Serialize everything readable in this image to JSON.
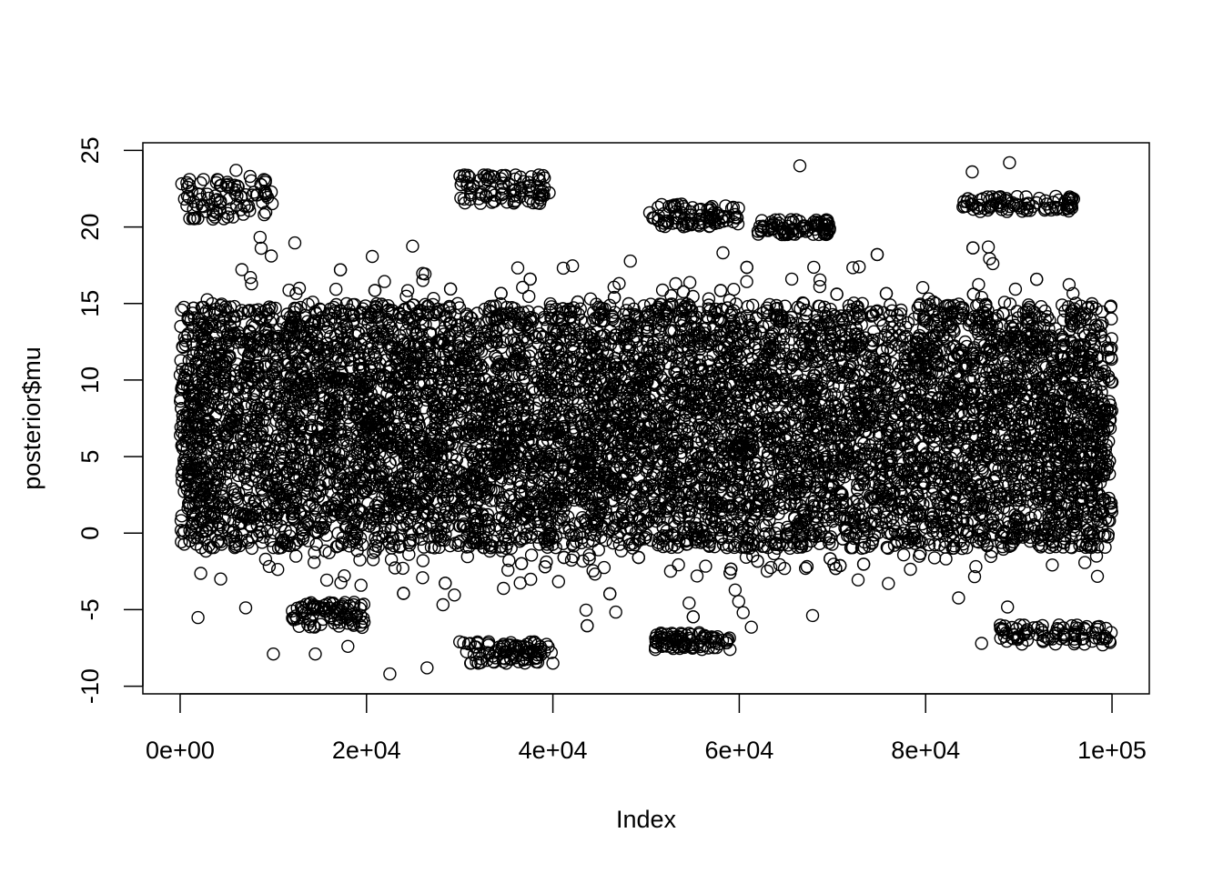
{
  "chart_data": {
    "type": "scatter",
    "title": "",
    "xlabel": "Index",
    "ylabel": "posterior$mu",
    "xlim": [
      -4000,
      104000
    ],
    "ylim": [
      -10.5,
      25.5
    ],
    "x_ticks": [
      {
        "value": 0,
        "label": "0e+00"
      },
      {
        "value": 20000,
        "label": "2e+04"
      },
      {
        "value": 40000,
        "label": "4e+04"
      },
      {
        "value": 60000,
        "label": "6e+04"
      },
      {
        "value": 80000,
        "label": "8e+04"
      },
      {
        "value": 100000,
        "label": "1e+05"
      }
    ],
    "y_ticks": [
      {
        "value": -10,
        "label": "-10"
      },
      {
        "value": -5,
        "label": "-5"
      },
      {
        "value": 0,
        "label": "0"
      },
      {
        "value": 5,
        "label": "5"
      },
      {
        "value": 10,
        "label": "10"
      },
      {
        "value": 15,
        "label": "15"
      },
      {
        "value": 20,
        "label": "20"
      },
      {
        "value": 25,
        "label": "25"
      }
    ],
    "marker": "open-circle",
    "grid": false,
    "legend": "none",
    "series": [
      {
        "x_range": [
          0,
          100000
        ],
        "n_points": 100000,
        "core_range": [
          -1,
          15
        ],
        "extreme_points": [
          [
            1000,
            23.1
          ],
          [
            2500,
            23.1
          ],
          [
            4000,
            23.1
          ],
          [
            6000,
            23.7
          ],
          [
            7500,
            23.3
          ],
          [
            9000,
            23.1
          ],
          [
            30500,
            23.4
          ],
          [
            33000,
            23.4
          ],
          [
            36000,
            23.4
          ],
          [
            38500,
            23.4
          ],
          [
            66500,
            24.0
          ],
          [
            85000,
            23.6
          ],
          [
            89000,
            24.2
          ],
          [
            10000,
            -7.9
          ],
          [
            14500,
            -7.9
          ],
          [
            18000,
            -7.4
          ],
          [
            22500,
            -9.2
          ],
          [
            26500,
            -8.8
          ],
          [
            30000,
            -7.1
          ],
          [
            32000,
            -8.5
          ],
          [
            35000,
            -8.5
          ],
          [
            38000,
            -7.1
          ],
          [
            40000,
            -8.5
          ],
          [
            51000,
            -7.6
          ],
          [
            56000,
            -7.6
          ],
          [
            59000,
            -7.6
          ],
          [
            86000,
            -7.2
          ],
          [
            99000,
            -7.3
          ]
        ]
      }
    ]
  }
}
